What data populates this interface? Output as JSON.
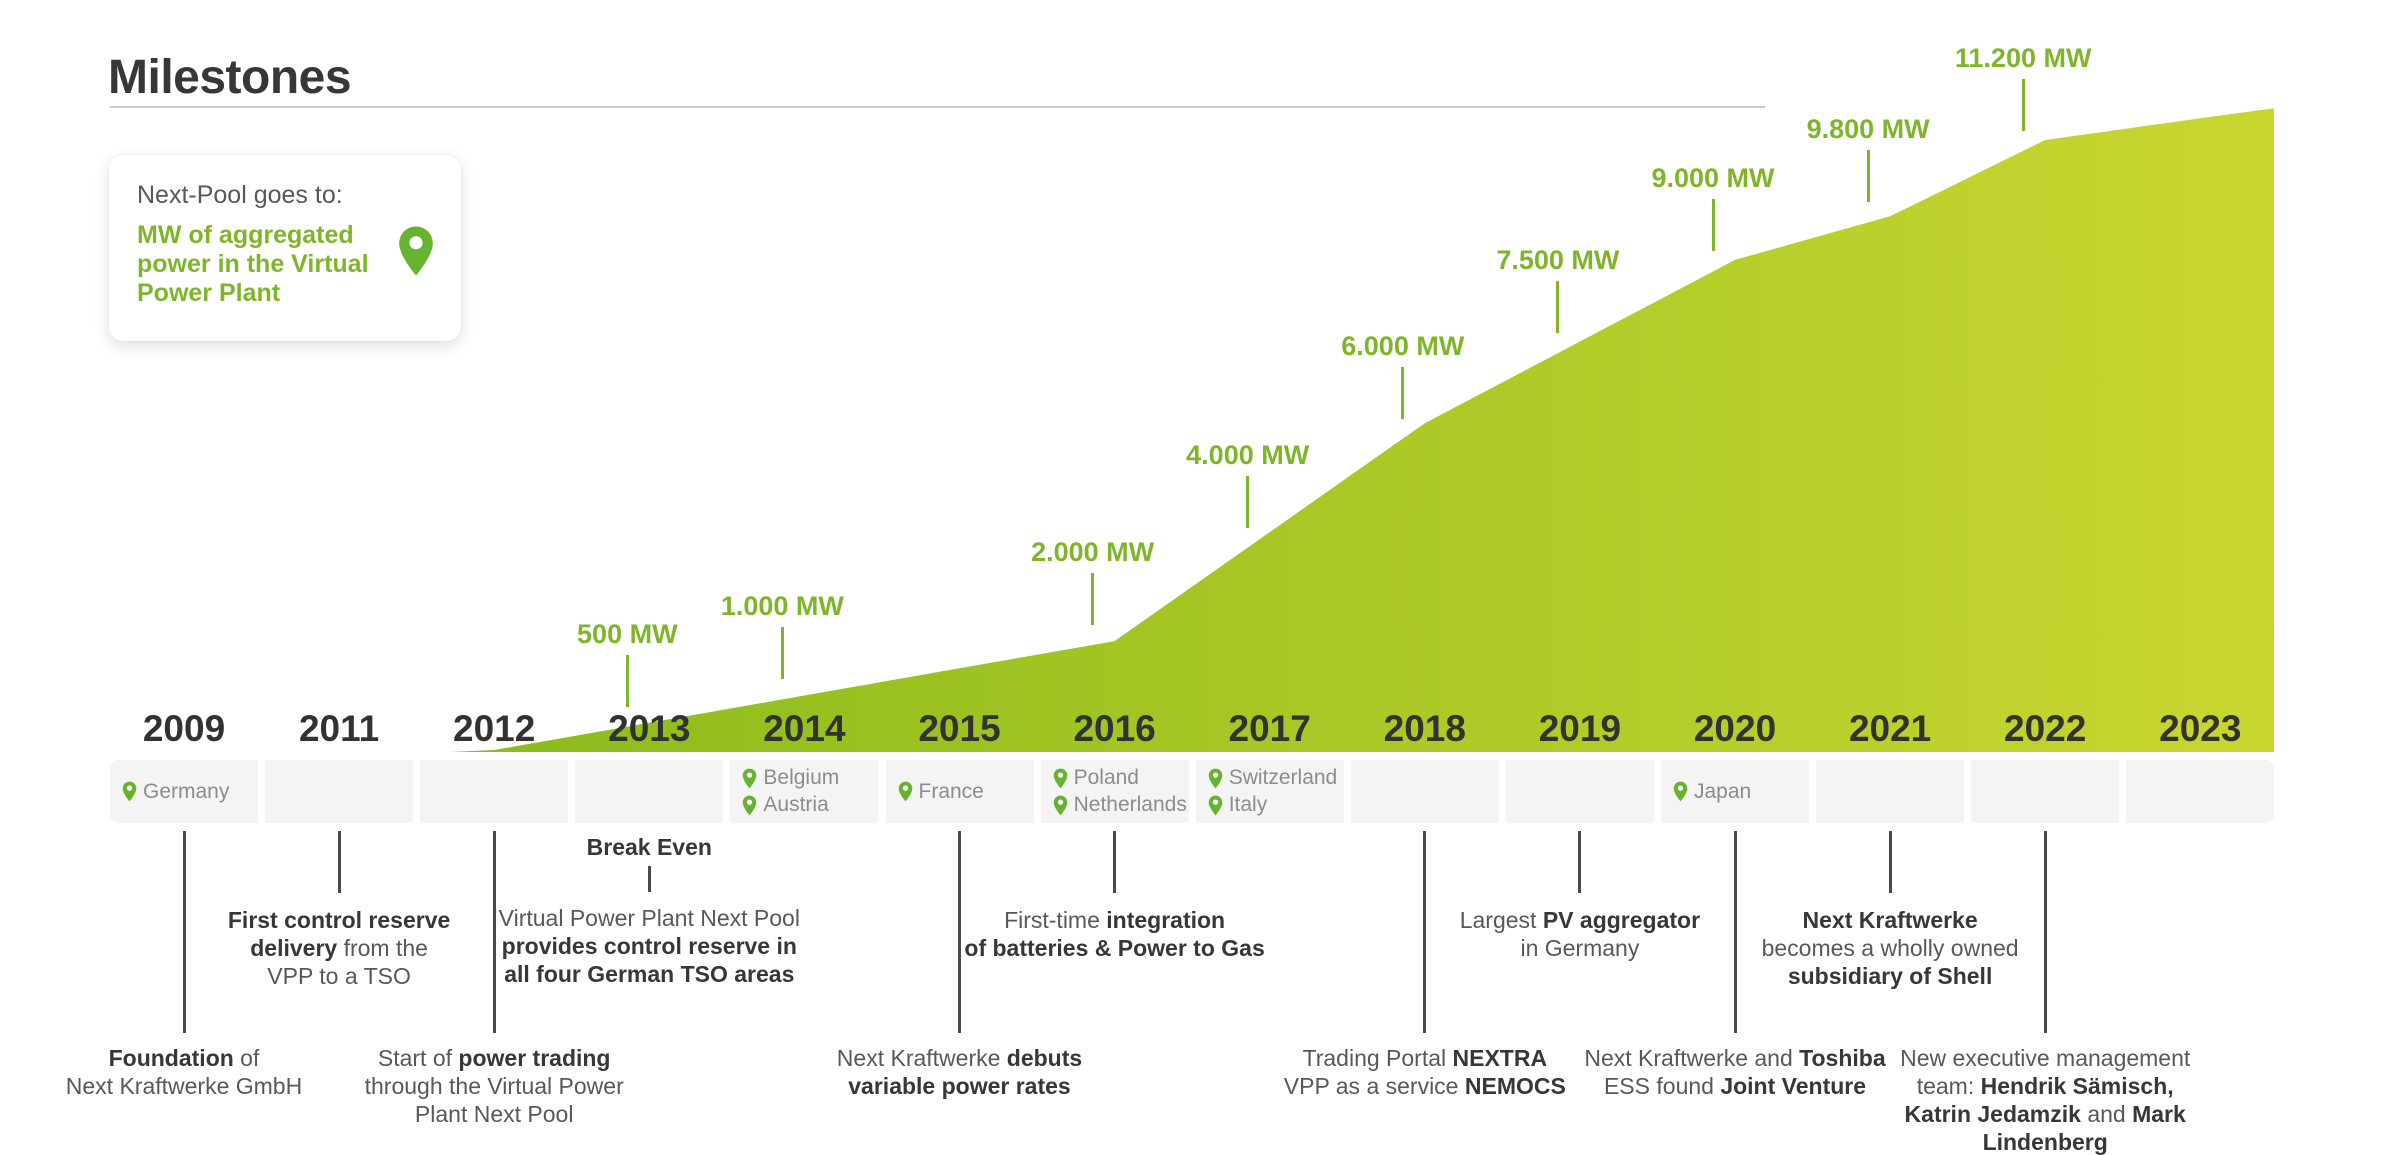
{
  "title": "Milestones",
  "legend_card": {
    "intro": "Next-Pool goes to:",
    "highlight": "MW of aggregated power in the Virtual Power Plant",
    "icon": "location-pin-icon"
  },
  "colors": {
    "text_dark": "#373735",
    "text_gray": "#585856",
    "country_gray": "#8c8c8b",
    "band_bg": "#f4f4f5",
    "label_green": "#7fb629",
    "pin_green": "#65b32e",
    "year_color": "#32322f",
    "rule_color": "#cbcbcb",
    "area_left": "#8bbb1c",
    "area_right": "#c9d630"
  },
  "chart_data": {
    "type": "area",
    "title": "Milestones",
    "subtitle": "MW of aggregated power in the Virtual Power Plant (Next-Pool)",
    "unit": "MW",
    "x_years": [
      "2009",
      "2011",
      "2012",
      "2013",
      "2014",
      "2015",
      "2016",
      "2017",
      "2018",
      "2019",
      "2020",
      "2021",
      "2022",
      "2023"
    ],
    "series": [
      {
        "name": "MW of aggregated power in the Virtual Power Plant",
        "points": [
          {
            "year": "2012",
            "mw": 0
          },
          {
            "year": "2013",
            "mw": 500
          },
          {
            "year": "2014",
            "mw": 1000
          },
          {
            "year": "2015",
            "mw": 1500
          },
          {
            "year": "2016",
            "mw": 2000
          },
          {
            "year": "2017",
            "mw": 4000
          },
          {
            "year": "2018",
            "mw": 6000
          },
          {
            "year": "2019",
            "mw": 7500
          },
          {
            "year": "2020",
            "mw": 9000
          },
          {
            "year": "2021",
            "mw": 9800
          },
          {
            "year": "2022",
            "mw": 11200
          },
          {
            "year": "2023",
            "mw": 11600
          }
        ]
      }
    ],
    "value_labels": [
      {
        "year": "2013",
        "label": "500 MW"
      },
      {
        "year": "2014",
        "label": "1.000 MW"
      },
      {
        "year": "2016",
        "label": "2.000 MW"
      },
      {
        "year": "2017",
        "label": "4.000 MW"
      },
      {
        "year": "2018",
        "label": "6.000 MW"
      },
      {
        "year": "2019",
        "label": "7.500 MW"
      },
      {
        "year": "2020",
        "label": "9.000 MW"
      },
      {
        "year": "2021",
        "label": "9.800 MW"
      },
      {
        "year": "2022",
        "label": "11.200 MW"
      }
    ],
    "ylim": [
      0,
      12000
    ],
    "grid": false,
    "legend_position": "top-left-card"
  },
  "countries": [
    {
      "year": "2009",
      "names": [
        "Germany"
      ]
    },
    {
      "year": "2014",
      "names": [
        "Belgium",
        "Austria"
      ]
    },
    {
      "year": "2015",
      "names": [
        "France"
      ]
    },
    {
      "year": "2016",
      "names": [
        "Poland",
        "Netherlands"
      ]
    },
    {
      "year": "2017",
      "names": [
        "Switzerland",
        "Italy"
      ]
    },
    {
      "year": "2020",
      "names": [
        "Japan"
      ]
    }
  ],
  "milestones": [
    {
      "year": "2009",
      "row": "far",
      "lines": [
        [
          {
            "t": "Foundation",
            "b": 1
          },
          {
            "t": " of"
          }
        ],
        [
          {
            "t": "Next Kraftwerke GmbH"
          }
        ]
      ]
    },
    {
      "year": "2011",
      "row": "near",
      "lines": [
        [
          {
            "t": "First control reserve",
            "b": 1
          }
        ],
        [
          {
            "t": "delivery",
            "b": 1
          },
          {
            "t": " from the"
          }
        ],
        [
          {
            "t": "VPP to a TSO"
          }
        ]
      ]
    },
    {
      "year": "2012",
      "row": "far",
      "lines": [
        [
          {
            "t": "Start of "
          },
          {
            "t": "power trading",
            "b": 1
          }
        ],
        [
          {
            "t": "through the Virtual Power"
          }
        ],
        [
          {
            "t": "Plant Next Pool"
          }
        ]
      ]
    },
    {
      "year": "2013",
      "row": "near",
      "pre_label": "Break Even",
      "lines": [
        [
          {
            "t": "Virtual Power Plant Next Pool"
          }
        ],
        [
          {
            "t": "provides control reserve in",
            "b": 1
          }
        ],
        [
          {
            "t": "all four German TSO areas",
            "b": 1
          }
        ]
      ]
    },
    {
      "year": "2015",
      "row": "far",
      "lines": [
        [
          {
            "t": "Next Kraftwerke "
          },
          {
            "t": "debuts",
            "b": 1
          }
        ],
        [
          {
            "t": "variable power rates",
            "b": 1
          }
        ]
      ]
    },
    {
      "year": "2016",
      "row": "near",
      "lines": [
        [
          {
            "t": "First-time "
          },
          {
            "t": "integration",
            "b": 1
          }
        ],
        [
          {
            "t": "of batteries & Power to Gas",
            "b": 1
          }
        ]
      ]
    },
    {
      "year": "2018",
      "row": "far",
      "lines": [
        [
          {
            "t": "Trading Portal "
          },
          {
            "t": "NEXTRA",
            "b": 1
          }
        ],
        [
          {
            "t": "VPP as a service "
          },
          {
            "t": "NEMOCS",
            "b": 1
          }
        ]
      ]
    },
    {
      "year": "2019",
      "row": "near",
      "lines": [
        [
          {
            "t": "Largest "
          },
          {
            "t": "PV aggregator",
            "b": 1
          }
        ],
        [
          {
            "t": "in Germany"
          }
        ]
      ]
    },
    {
      "year": "2020",
      "row": "far",
      "lines": [
        [
          {
            "t": "Next Kraftwerke and "
          },
          {
            "t": "Toshiba",
            "b": 1
          }
        ],
        [
          {
            "t": "ESS found "
          },
          {
            "t": "Joint Venture",
            "b": 1
          }
        ]
      ]
    },
    {
      "year": "2021",
      "row": "near",
      "lines": [
        [
          {
            "t": "Next Kraftwerke",
            "b": 1
          }
        ],
        [
          {
            "t": "becomes a wholly owned"
          }
        ],
        [
          {
            "t": "subsidiary of Shell",
            "b": 1
          }
        ]
      ]
    },
    {
      "year": "2022",
      "row": "far",
      "lines": [
        [
          {
            "t": "New executive management"
          }
        ],
        [
          {
            "t": "team: "
          },
          {
            "t": "Hendrik Sämisch,",
            "b": 1
          }
        ],
        [
          {
            "t": "Katrin Jedamzik",
            "b": 1
          },
          {
            "t": " and "
          },
          {
            "t": "Mark",
            "b": 1
          }
        ],
        [
          {
            "t": "Lindenberg",
            "b": 1
          }
        ]
      ]
    }
  ]
}
